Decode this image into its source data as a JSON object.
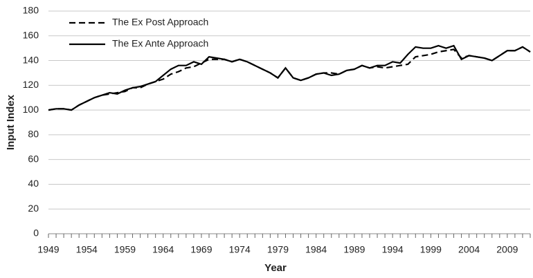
{
  "chart_data": {
    "type": "line",
    "xlabel": "Year",
    "ylabel": "Input Index",
    "x": [
      1949,
      1950,
      1951,
      1952,
      1953,
      1954,
      1955,
      1956,
      1957,
      1958,
      1959,
      1960,
      1961,
      1962,
      1963,
      1964,
      1965,
      1966,
      1967,
      1968,
      1969,
      1970,
      1971,
      1972,
      1973,
      1974,
      1975,
      1976,
      1977,
      1978,
      1979,
      1980,
      1981,
      1982,
      1983,
      1984,
      1985,
      1986,
      1987,
      1988,
      1989,
      1990,
      1991,
      1992,
      1993,
      1994,
      1995,
      1996,
      1997,
      1998,
      1999,
      2000,
      2001,
      2002,
      2003,
      2004,
      2005,
      2006,
      2007,
      2008,
      2009,
      2010,
      2011,
      2012
    ],
    "series": [
      {
        "name": "The Ex Post Approach",
        "color": "#000000",
        "dash": true,
        "values": [
          100,
          101,
          101,
          100,
          104,
          107,
          110,
          112,
          113,
          114,
          115,
          118,
          118,
          121,
          123,
          125,
          129,
          131,
          134,
          135,
          138,
          141,
          141,
          141,
          139,
          141,
          139,
          136,
          133,
          130,
          126,
          134,
          126,
          124,
          126,
          129,
          130,
          130,
          129,
          132,
          133,
          136,
          134,
          135,
          134,
          135,
          136,
          137,
          143,
          144,
          145,
          147,
          148,
          149,
          142,
          144,
          143,
          142,
          140,
          144,
          148,
          148,
          151,
          147
        ]
      },
      {
        "name": "The Ex Ante Approach",
        "color": "#000000",
        "dash": false,
        "values": [
          100,
          101,
          101,
          100,
          104,
          107,
          110,
          112,
          114,
          113,
          116,
          118,
          119,
          121,
          123,
          128,
          133,
          136,
          136,
          139,
          137,
          143,
          142,
          141,
          139,
          141,
          139,
          136,
          133,
          130,
          126,
          134,
          126,
          124,
          126,
          129,
          130,
          128,
          129,
          132,
          133,
          136,
          134,
          136,
          136,
          139,
          138,
          145,
          151,
          150,
          150,
          152,
          150,
          152,
          141,
          144,
          143,
          142,
          140,
          144,
          148,
          148,
          151,
          147
        ]
      }
    ],
    "xlim": [
      1949,
      2012
    ],
    "xticks": [
      1949,
      1954,
      1959,
      1964,
      1969,
      1974,
      1979,
      1984,
      1989,
      1994,
      1999,
      2004,
      2009
    ],
    "ylim": [
      0,
      180
    ],
    "yticks": [
      0,
      20,
      40,
      60,
      80,
      100,
      120,
      140,
      160,
      180
    ],
    "grid": true,
    "legend": "upper left"
  }
}
